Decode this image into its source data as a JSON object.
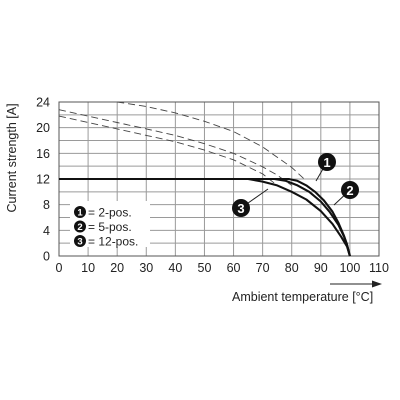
{
  "chart_data": {
    "type": "line",
    "title": "",
    "xlabel": "Ambient temperature [°C]",
    "ylabel": "Current strength [A]",
    "xlim": [
      0,
      110
    ],
    "ylim": [
      0,
      24
    ],
    "x_ticks": [
      "0",
      "10",
      "20",
      "30",
      "40",
      "50",
      "60",
      "70",
      "80",
      "90",
      "100",
      "110"
    ],
    "y_ticks": [
      "0",
      "4",
      "8",
      "12",
      "16",
      "20",
      "24"
    ],
    "grid": true,
    "legend_position": "bottom-left",
    "legend": [
      {
        "marker": "1",
        "label": "= 2-pos."
      },
      {
        "marker": "2",
        "label": "= 5-pos."
      },
      {
        "marker": "3",
        "label": "= 12-pos."
      }
    ],
    "series": [
      {
        "marker": "1",
        "style": "solid",
        "x": [
          0,
          79,
          82,
          85,
          88,
          91,
          94,
          96,
          98,
          99,
          100
        ],
        "y": [
          12,
          12,
          11.7,
          11,
          10,
          8.7,
          6.9,
          5.2,
          3.1,
          1.8,
          0
        ]
      },
      {
        "marker": "2",
        "style": "solid",
        "x": [
          0,
          74,
          78,
          82,
          86,
          90,
          93,
          96,
          98,
          99,
          100
        ],
        "y": [
          12,
          12,
          11.7,
          11,
          10,
          8.5,
          6.9,
          4.9,
          3,
          1.7,
          0
        ]
      },
      {
        "marker": "3",
        "style": "solid",
        "x": [
          0,
          65,
          70,
          75,
          80,
          85,
          90,
          94,
          97,
          99,
          100
        ],
        "y": [
          12,
          12,
          11.6,
          11,
          10,
          8.8,
          7,
          5,
          3,
          1.5,
          0
        ]
      },
      {
        "marker": "1",
        "style": "dashed",
        "x": [
          20,
          30,
          40,
          50,
          60,
          70,
          80,
          85
        ],
        "y": [
          24,
          23.3,
          22.3,
          21,
          19.4,
          17,
          13.8,
          11.7
        ]
      },
      {
        "marker": "2",
        "style": "dashed",
        "x": [
          0,
          10,
          20,
          30,
          40,
          50,
          60,
          70,
          75,
          80
        ],
        "y": [
          22.8,
          21.8,
          20.8,
          19.8,
          18.8,
          17.5,
          16,
          13.9,
          12.6,
          11
        ]
      },
      {
        "marker": "3",
        "style": "dashed",
        "x": [
          0,
          10,
          20,
          30,
          40,
          50,
          60,
          70,
          75
        ],
        "y": [
          21.8,
          20.8,
          19.8,
          18.8,
          17.8,
          16.5,
          15,
          12.8,
          11
        ]
      }
    ],
    "callouts": [
      "1",
      "2",
      "3"
    ]
  }
}
